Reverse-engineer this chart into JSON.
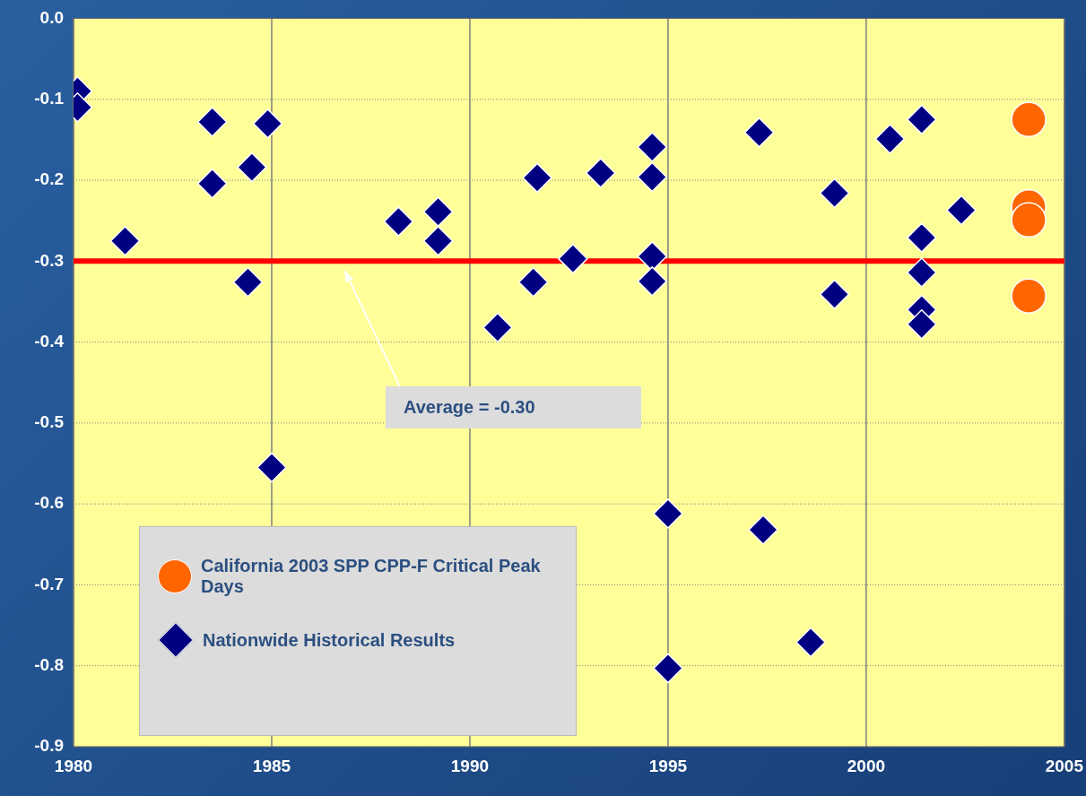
{
  "chart_data": {
    "type": "scatter",
    "xlim": [
      1980,
      2005
    ],
    "xticks": [
      1980,
      1985,
      1990,
      1995,
      2000,
      2005
    ],
    "ylim": [
      -0.9,
      0
    ],
    "yticks": [
      {
        "value": 0,
        "label": "0.0"
      },
      -0.1,
      -0.2,
      -0.3,
      -0.4,
      -0.5,
      -0.6,
      -0.7,
      -0.8,
      -0.9
    ],
    "grid": true,
    "legend": "bottom left",
    "ref_lines": [
      {
        "axis": "y",
        "value": -0.3,
        "color": "#ff0000"
      }
    ],
    "annotations": [
      "Average = -0.30"
    ],
    "series": [
      {
        "name": "California 2003 SPP CPP-F Critical Peak Days",
        "color": "#ff6600",
        "marker": "circle",
        "x": [
          2004.1,
          2004.1,
          2004.1,
          2004.1
        ],
        "values": [
          -0.125,
          -0.233,
          -0.249,
          -0.343
        ]
      },
      {
        "name": "Nationwide Historical Results",
        "color": "#000080",
        "marker": "diamond",
        "x": [
          1980.1,
          1980.1,
          1981.3,
          1983.5,
          1983.5,
          1984.5,
          1984.9,
          1984.4,
          1985.0,
          1988.2,
          1989.2,
          1989.2,
          1990.7,
          1991.6,
          1991.7,
          1992.6,
          1993.3,
          1994.6,
          1994.6,
          1994.6,
          1994.6,
          1995.0,
          1995.0,
          1997.3,
          1997.4,
          1998.6,
          1999.2,
          1999.2,
          2000.6,
          2001.4,
          2001.4,
          2001.4,
          2001.4,
          2001.4,
          2002.4
        ],
        "values": [
          -0.09,
          -0.11,
          -0.275,
          -0.128,
          -0.204,
          -0.184,
          -0.13,
          -0.326,
          -0.555,
          -0.251,
          -0.239,
          -0.275,
          -0.382,
          -0.326,
          -0.197,
          -0.297,
          -0.191,
          -0.159,
          -0.196,
          -0.294,
          -0.325,
          -0.612,
          -0.803,
          -0.141,
          -0.632,
          -0.771,
          -0.216,
          -0.341,
          -0.149,
          -0.125,
          -0.271,
          -0.314,
          -0.36,
          -0.378,
          -0.237
        ]
      }
    ]
  }
}
